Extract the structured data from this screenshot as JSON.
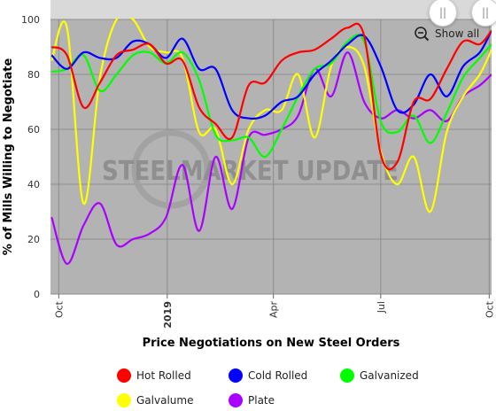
{
  "chart_data": {
    "type": "line",
    "xlabel": "Price Negotiations on New Steel Orders",
    "ylabel": "% of Mills Willing to Negotiate",
    "ylim": [
      0,
      100
    ],
    "yticks": [
      0,
      20,
      40,
      60,
      80,
      100
    ],
    "xlim": [
      "2018-09-24",
      "2019-10-03"
    ],
    "xticks": [
      {
        "date": "2018-10-01",
        "label": "Oct",
        "bold": false
      },
      {
        "date": "2019-01-01",
        "label": "2019",
        "bold": true
      },
      {
        "date": "2019-04-01",
        "label": "Apr",
        "bold": false
      },
      {
        "date": "2019-07-01",
        "label": "Jul",
        "bold": false
      },
      {
        "date": "2019-10-01",
        "label": "Oct",
        "bold": false
      }
    ],
    "grid": true,
    "legend_position": "bottom",
    "watermark": "STEELMARKET UPDATE",
    "series": [
      {
        "name": "Hot Rolled",
        "color": "#ff0000",
        "x": [
          "2018-09-25",
          "2018-10-08",
          "2018-10-22",
          "2018-11-05",
          "2018-11-19",
          "2018-12-03",
          "2018-12-17",
          "2018-12-31",
          "2019-01-14",
          "2019-01-28",
          "2019-02-11",
          "2019-02-25",
          "2019-03-11",
          "2019-03-25",
          "2019-04-08",
          "2019-04-22",
          "2019-05-06",
          "2019-05-20",
          "2019-06-03",
          "2019-06-17",
          "2019-07-01",
          "2019-07-15",
          "2019-07-29",
          "2019-08-12",
          "2019-08-26",
          "2019-09-09",
          "2019-09-23",
          "2019-10-03"
        ],
        "y": [
          90,
          87,
          68,
          77,
          87,
          89,
          91,
          84,
          85,
          68,
          62,
          57,
          76,
          77,
          85,
          88,
          89,
          93,
          97,
          94,
          51,
          48,
          70,
          71,
          82,
          92,
          91,
          96
        ]
      },
      {
        "name": "Cold Rolled",
        "color": "#0000ff",
        "x": [
          "2018-09-25",
          "2018-10-08",
          "2018-10-22",
          "2018-11-05",
          "2018-11-19",
          "2018-12-03",
          "2018-12-17",
          "2018-12-31",
          "2019-01-14",
          "2019-01-28",
          "2019-02-11",
          "2019-02-25",
          "2019-03-11",
          "2019-03-25",
          "2019-04-08",
          "2019-04-22",
          "2019-05-06",
          "2019-05-20",
          "2019-06-03",
          "2019-06-17",
          "2019-07-01",
          "2019-07-15",
          "2019-07-29",
          "2019-08-12",
          "2019-08-26",
          "2019-09-09",
          "2019-09-23",
          "2019-10-03"
        ],
        "y": [
          87,
          82,
          88,
          86,
          86,
          92,
          91,
          86,
          93,
          82,
          82,
          67,
          64,
          65,
          70,
          72,
          80,
          85,
          91,
          94,
          83,
          67,
          69,
          80,
          72,
          83,
          88,
          96
        ]
      },
      {
        "name": "Galvanized",
        "color": "#00ff00",
        "x": [
          "2018-09-25",
          "2018-10-08",
          "2018-10-22",
          "2018-11-05",
          "2018-11-19",
          "2018-12-03",
          "2018-12-17",
          "2018-12-31",
          "2019-01-14",
          "2019-01-28",
          "2019-02-11",
          "2019-02-25",
          "2019-03-11",
          "2019-03-25",
          "2019-04-08",
          "2019-04-22",
          "2019-05-06",
          "2019-05-20",
          "2019-06-03",
          "2019-06-17",
          "2019-07-01",
          "2019-07-15",
          "2019-07-29",
          "2019-08-12",
          "2019-08-26",
          "2019-09-09",
          "2019-09-23",
          "2019-10-03"
        ],
        "y": [
          81,
          82,
          87,
          74,
          80,
          87,
          88,
          84,
          88,
          78,
          58,
          56,
          57,
          50,
          60,
          72,
          82,
          84,
          92,
          92,
          63,
          59,
          65,
          55,
          66,
          79,
          86,
          91
        ]
      },
      {
        "name": "Galvalume",
        "color": "#ffff00",
        "x": [
          "2018-09-25",
          "2018-10-08",
          "2018-10-22",
          "2018-11-05",
          "2018-11-19",
          "2018-12-03",
          "2018-12-17",
          "2018-12-31",
          "2019-01-14",
          "2019-01-28",
          "2019-02-11",
          "2019-02-25",
          "2019-03-11",
          "2019-03-25",
          "2019-04-08",
          "2019-04-22",
          "2019-05-06",
          "2019-05-20",
          "2019-06-03",
          "2019-06-17",
          "2019-07-01",
          "2019-07-15",
          "2019-07-29",
          "2019-08-12",
          "2019-08-26",
          "2019-09-09",
          "2019-09-23",
          "2019-10-03"
        ],
        "y": [
          85,
          97,
          33,
          79,
          100,
          100,
          90,
          88,
          86,
          59,
          60,
          40,
          60,
          67,
          67,
          80,
          57,
          83,
          90,
          83,
          52,
          40,
          50,
          30,
          59,
          72,
          80,
          89
        ]
      },
      {
        "name": "Plate",
        "color": "#aa00ff",
        "x": [
          "2018-09-25",
          "2018-10-08",
          "2018-10-22",
          "2018-11-05",
          "2018-11-19",
          "2018-12-03",
          "2018-12-17",
          "2018-12-31",
          "2019-01-14",
          "2019-01-28",
          "2019-02-11",
          "2019-02-25",
          "2019-03-11",
          "2019-03-25",
          "2019-04-08",
          "2019-04-22",
          "2019-05-06",
          "2019-05-20",
          "2019-06-03",
          "2019-06-17",
          "2019-07-01",
          "2019-07-15",
          "2019-07-29",
          "2019-08-12",
          "2019-08-26",
          "2019-09-09",
          "2019-09-23",
          "2019-10-03"
        ],
        "y": [
          28,
          11,
          25,
          33,
          18,
          20,
          22,
          28,
          47,
          23,
          50,
          31,
          57,
          58,
          60,
          65,
          82,
          72,
          88,
          70,
          64,
          67,
          64,
          67,
          63,
          72,
          76,
          80
        ]
      }
    ]
  },
  "controls": {
    "show_all_label": "Show all",
    "nav_left_glyph": "||",
    "nav_right_glyph": "||"
  }
}
